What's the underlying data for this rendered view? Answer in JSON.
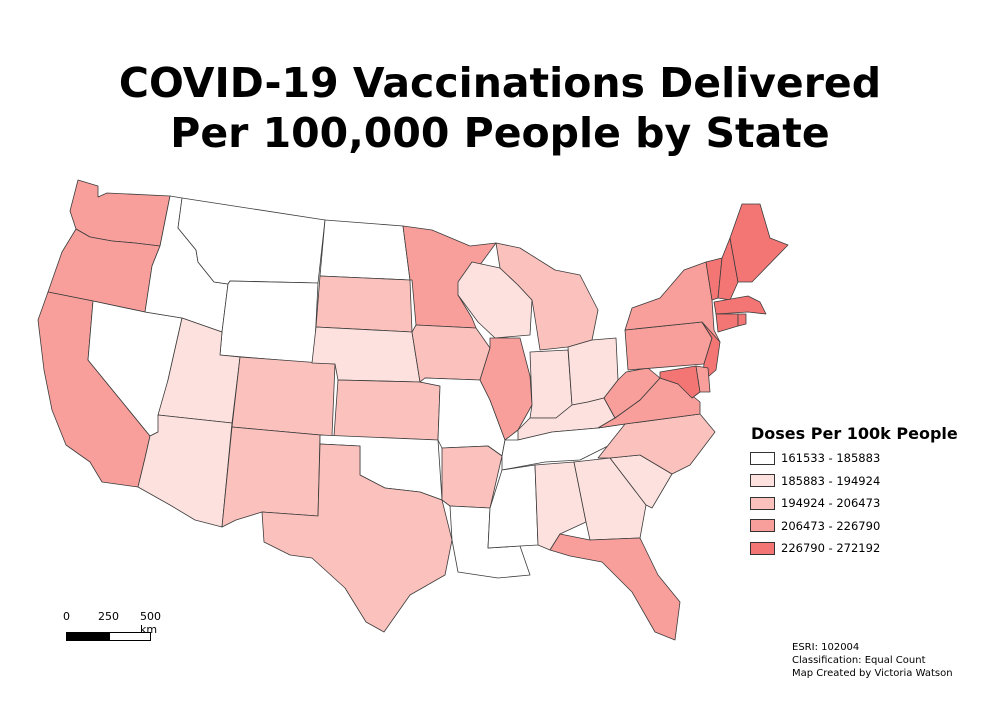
{
  "title": {
    "line1": "COVID-19 Vaccinations Delivered",
    "line2": "Per 100,000 People by State"
  },
  "legend": {
    "title": "Doses Per 100k People",
    "classes": [
      {
        "label": "161533 - 185883",
        "color": "#ffffff"
      },
      {
        "label": "185883 - 194924",
        "color": "#fde1de"
      },
      {
        "label": "194924 - 206473",
        "color": "#fbc1bd"
      },
      {
        "label": "206473 - 226790",
        "color": "#f89f9b"
      },
      {
        "label": "226790 - 272192",
        "color": "#f37674"
      }
    ]
  },
  "scale_bar": {
    "labels": [
      "0",
      "250",
      "500 km"
    ]
  },
  "credits": {
    "source": "ESRI: 102004",
    "classification": "Classification: Equal Count",
    "author": "Map Created by Victoria Watson"
  },
  "states": [
    {
      "name": "Washington",
      "class": 3
    },
    {
      "name": "Oregon",
      "class": 3
    },
    {
      "name": "California",
      "class": 3
    },
    {
      "name": "Idaho",
      "class": 0
    },
    {
      "name": "Nevada",
      "class": 0
    },
    {
      "name": "Montana",
      "class": 0
    },
    {
      "name": "Wyoming",
      "class": 0
    },
    {
      "name": "Utah",
      "class": 1
    },
    {
      "name": "Arizona",
      "class": 1
    },
    {
      "name": "Colorado",
      "class": 2
    },
    {
      "name": "New Mexico",
      "class": 2
    },
    {
      "name": "North Dakota",
      "class": 0
    },
    {
      "name": "South Dakota",
      "class": 2
    },
    {
      "name": "Nebraska",
      "class": 1
    },
    {
      "name": "Kansas",
      "class": 2
    },
    {
      "name": "Oklahoma",
      "class": 0
    },
    {
      "name": "Texas",
      "class": 2
    },
    {
      "name": "Minnesota",
      "class": 3
    },
    {
      "name": "Iowa",
      "class": 2
    },
    {
      "name": "Missouri",
      "class": 0
    },
    {
      "name": "Arkansas",
      "class": 2
    },
    {
      "name": "Louisiana",
      "class": 0
    },
    {
      "name": "Wisconsin",
      "class": 1
    },
    {
      "name": "Illinois",
      "class": 3
    },
    {
      "name": "Michigan",
      "class": 2
    },
    {
      "name": "Indiana",
      "class": 1
    },
    {
      "name": "Ohio",
      "class": 1
    },
    {
      "name": "Kentucky",
      "class": 1
    },
    {
      "name": "Tennessee",
      "class": 0
    },
    {
      "name": "Mississippi",
      "class": 0
    },
    {
      "name": "Alabama",
      "class": 1
    },
    {
      "name": "Georgia",
      "class": 1
    },
    {
      "name": "Florida",
      "class": 3
    },
    {
      "name": "South Carolina",
      "class": 1
    },
    {
      "name": "North Carolina",
      "class": 2
    },
    {
      "name": "Virginia",
      "class": 3
    },
    {
      "name": "West Virginia",
      "class": 3
    },
    {
      "name": "Pennsylvania",
      "class": 3
    },
    {
      "name": "New York",
      "class": 3
    },
    {
      "name": "New Jersey",
      "class": 4
    },
    {
      "name": "Maryland",
      "class": 4
    },
    {
      "name": "Delaware",
      "class": 3
    },
    {
      "name": "Vermont",
      "class": 4
    },
    {
      "name": "New Hampshire",
      "class": 4
    },
    {
      "name": "Maine",
      "class": 4
    },
    {
      "name": "Massachusetts",
      "class": 4
    },
    {
      "name": "Connecticut",
      "class": 4
    },
    {
      "name": "Rhode Island",
      "class": 4
    }
  ]
}
